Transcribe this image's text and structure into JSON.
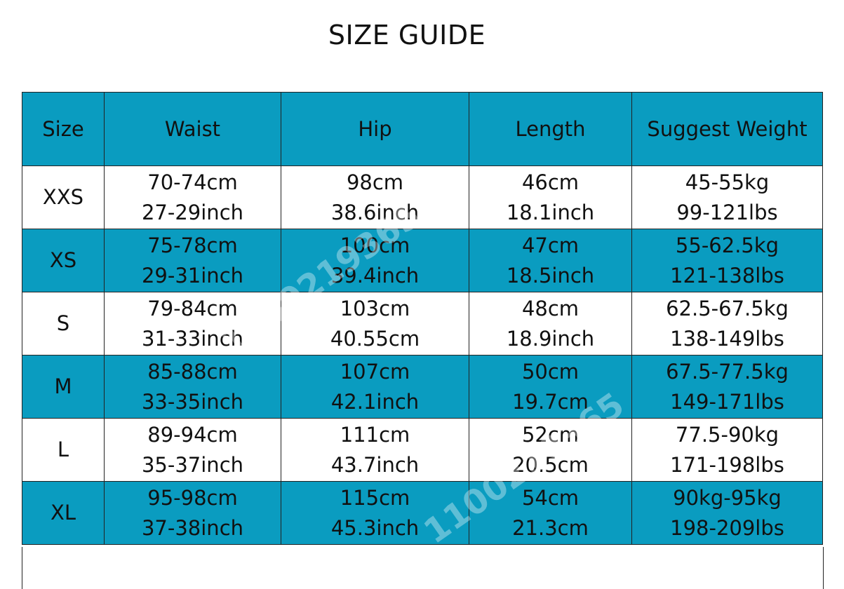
{
  "title": "SIZE GUIDE",
  "headers": [
    "Size",
    "Waist",
    "Hip",
    "Length",
    "Suggest Weight"
  ],
  "rows": [
    {
      "size": "XXS",
      "waist": [
        "70-74cm",
        "27-29inch"
      ],
      "hip": [
        "98cm",
        "38.6inch"
      ],
      "length": [
        "46cm",
        "18.1inch"
      ],
      "weight": [
        "45-55kg",
        "99-121lbs"
      ]
    },
    {
      "size": "XS",
      "waist": [
        "75-78cm",
        "29-31inch"
      ],
      "hip": [
        "100cm",
        "39.4inch"
      ],
      "length": [
        "47cm",
        "18.5inch"
      ],
      "weight": [
        "55-62.5kg",
        "121-138lbs"
      ]
    },
    {
      "size": "S",
      "waist": [
        "79-84cm",
        "31-33inch"
      ],
      "hip": [
        "103cm",
        "40.55cm"
      ],
      "length": [
        "48cm",
        "18.9inch"
      ],
      "weight": [
        "62.5-67.5kg",
        "138-149lbs"
      ]
    },
    {
      "size": "M",
      "waist": [
        "85-88cm",
        "33-35inch"
      ],
      "hip": [
        "107cm",
        "42.1inch"
      ],
      "length": [
        "50cm",
        "19.7cm"
      ],
      "weight": [
        "67.5-77.5kg",
        "149-171lbs"
      ]
    },
    {
      "size": "L",
      "waist": [
        "89-94cm",
        "35-37inch"
      ],
      "hip": [
        "111cm",
        "43.7inch"
      ],
      "length": [
        "52cm",
        "20.5cm"
      ],
      "weight": [
        "77.5-90kg",
        "171-198lbs"
      ]
    },
    {
      "size": "XL",
      "waist": [
        "95-98cm",
        "37-38inch"
      ],
      "hip": [
        "115cm",
        "45.3inch"
      ],
      "length": [
        "54cm",
        "21.3cm"
      ],
      "weight": [
        "90kg-95kg",
        "198-209lbs"
      ]
    }
  ],
  "watermark": "1100219365",
  "colors": {
    "header_bg": "#0a9cc0",
    "row_alt_bg": "#0a9cc0"
  }
}
